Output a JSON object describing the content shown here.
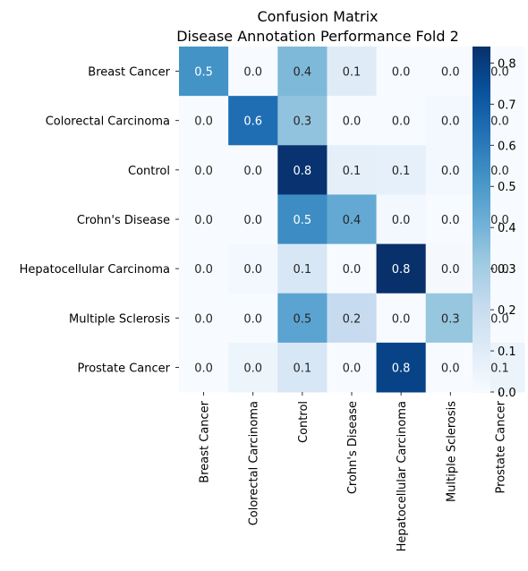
{
  "chart_data": {
    "type": "heatmap",
    "title": "Confusion Matrix",
    "subtitle": "Disease Annotation Performance Fold 2",
    "xlabel": "",
    "ylabel": "",
    "rows": [
      "Breast Cancer",
      "Colorectal Carcinoma",
      "Control",
      "Crohn's Disease",
      "Hepatocellular Carcinoma",
      "Multiple Sclerosis",
      "Prostate Cancer"
    ],
    "columns": [
      "Breast Cancer",
      "Colorectal Carcinoma",
      "Control",
      "Crohn's Disease",
      "Hepatocellular Carcinoma",
      "Multiple Sclerosis",
      "Prostate Cancer"
    ],
    "values": [
      [
        0.52,
        0.0,
        0.38,
        0.1,
        0.0,
        0.0,
        0.0
      ],
      [
        0.0,
        0.64,
        0.34,
        0.0,
        0.0,
        0.02,
        0.0
      ],
      [
        0.0,
        0.0,
        0.83,
        0.08,
        0.07,
        0.02,
        0.0
      ],
      [
        0.0,
        0.0,
        0.54,
        0.44,
        0.02,
        0.0,
        0.0
      ],
      [
        0.0,
        0.02,
        0.13,
        0.0,
        0.84,
        0.01,
        0.0
      ],
      [
        0.0,
        0.0,
        0.46,
        0.21,
        0.0,
        0.33,
        0.0
      ],
      [
        0.0,
        0.04,
        0.13,
        0.0,
        0.78,
        0.0,
        0.05
      ]
    ],
    "value_format": "0.0",
    "colormap": "Blues",
    "color_low": "#f7fbff",
    "color_high": "#08306b",
    "vmin": 0.0,
    "vmax": 0.84,
    "colorbar_ticks": [
      "0.0",
      "0.1",
      "0.2",
      "0.3",
      "0.4",
      "0.5",
      "0.6",
      "0.7",
      "0.8"
    ],
    "legend_position": "right"
  }
}
